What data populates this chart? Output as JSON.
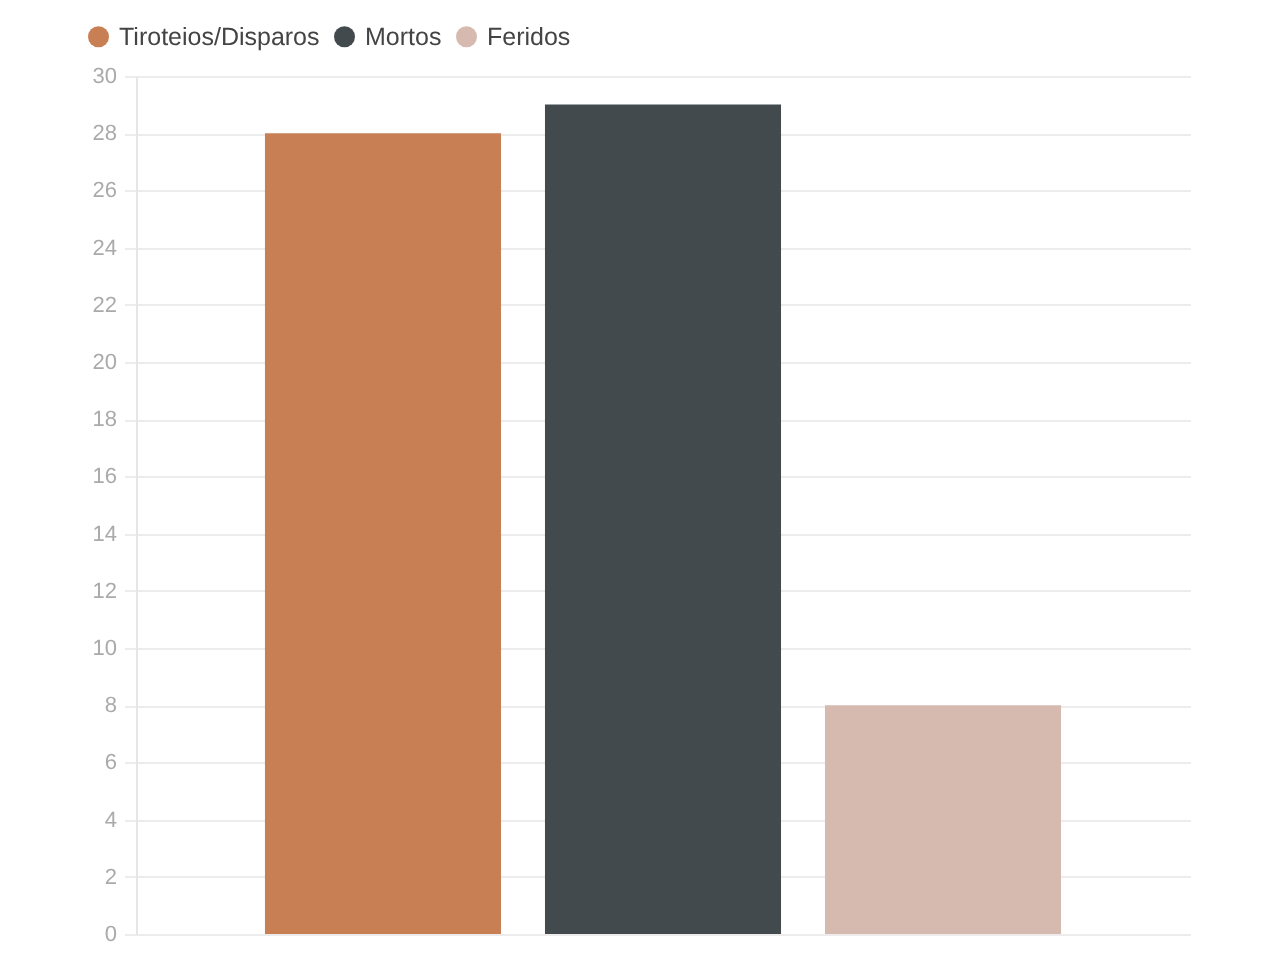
{
  "chart_data": {
    "type": "bar",
    "categories": [
      null
    ],
    "series": [
      {
        "name": "Tiroteios/Disparos",
        "color": "#c97f54",
        "values": [
          28
        ]
      },
      {
        "name": "Mortos",
        "color": "#434a4e",
        "values": [
          29
        ]
      },
      {
        "name": "Feridos",
        "color": "#d6bab0",
        "values": [
          8
        ]
      }
    ],
    "ylim": [
      0,
      30
    ],
    "yticks": [
      0,
      2,
      4,
      6,
      8,
      10,
      12,
      14,
      16,
      18,
      20,
      22,
      24,
      26,
      28,
      30
    ],
    "grid": "y",
    "legend": "top left",
    "tick_labels": "y"
  }
}
